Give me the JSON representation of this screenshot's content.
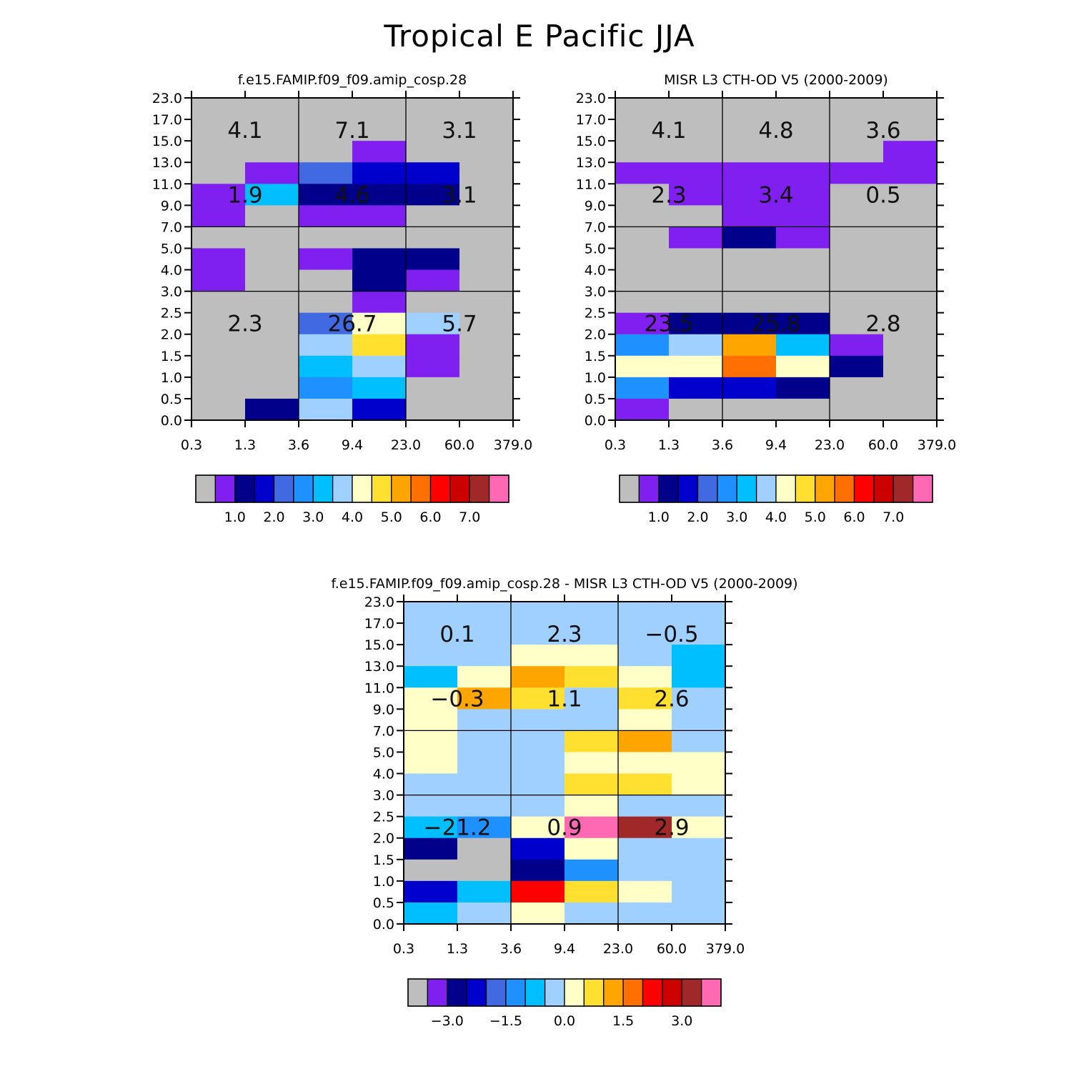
{
  "figure": {
    "title": "Tropical E Pacific JJA"
  },
  "chart_data": [
    {
      "type": "heatmap",
      "title": "f.e15.FAMIP.f09_f09.amip_cosp.28",
      "x_tick_labels": [
        "0.3",
        "1.3",
        "3.6",
        "9.4",
        "23.0",
        "60.0",
        "379.0"
      ],
      "y_tick_labels": [
        "0.0",
        "0.5",
        "1.0",
        "1.5",
        "2.0",
        "2.5",
        "3.0",
        "4.0",
        "5.0",
        "7.0",
        "9.0",
        "11.0",
        "13.0",
        "15.0",
        "17.0",
        "23.0"
      ],
      "x_dividers": [
        2,
        4
      ],
      "y_dividers": [
        6,
        9
      ],
      "grid_rows": [
        [
          0,
          0,
          0,
          0,
          0,
          0
        ],
        [
          0,
          0,
          0,
          0,
          0,
          0
        ],
        [
          0,
          0,
          0,
          1,
          0,
          0
        ],
        [
          0,
          1,
          4,
          3,
          3,
          0
        ],
        [
          1,
          6,
          2,
          2,
          2,
          0
        ],
        [
          1,
          0,
          1,
          1,
          0,
          0
        ],
        [
          0,
          0,
          0,
          0,
          0,
          0
        ],
        [
          1,
          0,
          1,
          2,
          2,
          0
        ],
        [
          1,
          0,
          0,
          2,
          1,
          0
        ],
        [
          0,
          0,
          0,
          1,
          0,
          0
        ],
        [
          0,
          0,
          4,
          8,
          7,
          0
        ],
        [
          0,
          0,
          7,
          9,
          1,
          0
        ],
        [
          0,
          0,
          6,
          7,
          1,
          0
        ],
        [
          0,
          0,
          5,
          6,
          0,
          0
        ],
        [
          0,
          2,
          7,
          3,
          0,
          0
        ]
      ],
      "region_labels": [
        {
          "row": 0,
          "col": 0,
          "text": "4.1"
        },
        {
          "row": 0,
          "col": 1,
          "text": "7.1"
        },
        {
          "row": 0,
          "col": 2,
          "text": "3.1"
        },
        {
          "row": 1,
          "col": 0,
          "text": "1.9"
        },
        {
          "row": 1,
          "col": 1,
          "text": "4.6"
        },
        {
          "row": 1,
          "col": 2,
          "text": "3.1"
        },
        {
          "row": 2,
          "col": 0,
          "text": "2.3"
        },
        {
          "row": 2,
          "col": 1,
          "text": "26.7"
        },
        {
          "row": 2,
          "col": 2,
          "text": "5.7"
        }
      ],
      "colorbar": {
        "colors": [
          "#bebebe",
          "#8020f0",
          "#00008b",
          "#0000cd",
          "#4169e1",
          "#1e90ff",
          "#00bfff",
          "#a0d0ff",
          "#ffffc8",
          "#ffe030",
          "#ffa500",
          "#ff7000",
          "#ff0000",
          "#cd0000",
          "#a02828",
          "#ff69b4"
        ],
        "tick_labels": [
          "1.0",
          "2.0",
          "3.0",
          "4.0",
          "5.0",
          "6.0",
          "7.0"
        ],
        "tick_boundaries": [
          2,
          4,
          6,
          8,
          10,
          12,
          14
        ]
      }
    },
    {
      "type": "heatmap",
      "title": "MISR L3 CTH-OD V5 (2000-2009)",
      "x_tick_labels": [
        "0.3",
        "1.3",
        "3.6",
        "9.4",
        "23.0",
        "60.0",
        "379.0"
      ],
      "y_tick_labels": [
        "0.0",
        "0.5",
        "1.0",
        "1.5",
        "2.0",
        "2.5",
        "3.0",
        "4.0",
        "5.0",
        "7.0",
        "9.0",
        "11.0",
        "13.0",
        "15.0",
        "17.0",
        "23.0"
      ],
      "x_dividers": [
        2,
        4
      ],
      "y_dividers": [
        6,
        9
      ],
      "grid_rows": [
        [
          0,
          0,
          0,
          0,
          0,
          0
        ],
        [
          0,
          0,
          0,
          0,
          0,
          0
        ],
        [
          0,
          0,
          0,
          0,
          0,
          1
        ],
        [
          1,
          1,
          1,
          1,
          1,
          1
        ],
        [
          0,
          1,
          1,
          1,
          0,
          0
        ],
        [
          0,
          0,
          1,
          1,
          0,
          0
        ],
        [
          0,
          1,
          2,
          1,
          0,
          0
        ],
        [
          0,
          0,
          0,
          0,
          0,
          0
        ],
        [
          0,
          0,
          0,
          0,
          0,
          0
        ],
        [
          0,
          0,
          0,
          0,
          0,
          0
        ],
        [
          1,
          2,
          2,
          2,
          0,
          0
        ],
        [
          5,
          7,
          10,
          6,
          1,
          0
        ],
        [
          8,
          8,
          11,
          8,
          2,
          0
        ],
        [
          5,
          3,
          3,
          2,
          0,
          0
        ],
        [
          1,
          0,
          0,
          0,
          0,
          0
        ]
      ],
      "region_labels": [
        {
          "row": 0,
          "col": 0,
          "text": "4.1"
        },
        {
          "row": 0,
          "col": 1,
          "text": "4.8"
        },
        {
          "row": 0,
          "col": 2,
          "text": "3.6"
        },
        {
          "row": 1,
          "col": 0,
          "text": "2.3"
        },
        {
          "row": 1,
          "col": 1,
          "text": "3.4"
        },
        {
          "row": 1,
          "col": 2,
          "text": "0.5"
        },
        {
          "row": 2,
          "col": 0,
          "text": "23.5"
        },
        {
          "row": 2,
          "col": 1,
          "text": "25.8"
        },
        {
          "row": 2,
          "col": 2,
          "text": "2.8"
        }
      ],
      "colorbar": {
        "colors": [
          "#bebebe",
          "#8020f0",
          "#00008b",
          "#0000cd",
          "#4169e1",
          "#1e90ff",
          "#00bfff",
          "#a0d0ff",
          "#ffffc8",
          "#ffe030",
          "#ffa500",
          "#ff7000",
          "#ff0000",
          "#cd0000",
          "#a02828",
          "#ff69b4"
        ],
        "tick_labels": [
          "1.0",
          "2.0",
          "3.0",
          "4.0",
          "5.0",
          "6.0",
          "7.0"
        ],
        "tick_boundaries": [
          2,
          4,
          6,
          8,
          10,
          12,
          14
        ]
      }
    },
    {
      "type": "heatmap",
      "title": "f.e15.FAMIP.f09_f09.amip_cosp.28 - MISR L3 CTH-OD V5 (2000-2009)",
      "x_tick_labels": [
        "0.3",
        "1.3",
        "3.6",
        "9.4",
        "23.0",
        "60.0",
        "379.0"
      ],
      "y_tick_labels": [
        "0.0",
        "0.5",
        "1.0",
        "1.5",
        "2.0",
        "2.5",
        "3.0",
        "4.0",
        "5.0",
        "7.0",
        "9.0",
        "11.0",
        "13.0",
        "15.0",
        "17.0",
        "23.0"
      ],
      "x_dividers": [
        2,
        4
      ],
      "y_dividers": [
        6,
        9
      ],
      "grid_rows": [
        [
          7,
          7,
          7,
          7,
          7,
          7
        ],
        [
          7,
          7,
          7,
          7,
          7,
          7
        ],
        [
          7,
          7,
          8,
          8,
          7,
          6
        ],
        [
          6,
          8,
          10,
          9,
          8,
          6
        ],
        [
          8,
          10,
          9,
          7,
          9,
          7
        ],
        [
          8,
          7,
          7,
          7,
          8,
          7
        ],
        [
          8,
          7,
          7,
          9,
          10,
          7
        ],
        [
          8,
          7,
          7,
          8,
          8,
          8
        ],
        [
          7,
          7,
          7,
          9,
          9,
          8
        ],
        [
          7,
          7,
          7,
          8,
          7,
          7
        ],
        [
          6,
          5,
          8,
          15,
          14,
          8
        ],
        [
          2,
          0,
          3,
          8,
          7,
          7
        ],
        [
          0,
          0,
          2,
          5,
          7,
          7
        ],
        [
          3,
          6,
          12,
          9,
          8,
          7
        ],
        [
          6,
          7,
          8,
          7,
          7,
          7
        ]
      ],
      "region_labels": [
        {
          "row": 0,
          "col": 0,
          "text": "0.1"
        },
        {
          "row": 0,
          "col": 1,
          "text": "2.3"
        },
        {
          "row": 0,
          "col": 2,
          "text": "−0.5"
        },
        {
          "row": 1,
          "col": 0,
          "text": "−0.3"
        },
        {
          "row": 1,
          "col": 1,
          "text": "1.1"
        },
        {
          "row": 1,
          "col": 2,
          "text": "2.6"
        },
        {
          "row": 2,
          "col": 0,
          "text": "−21.2"
        },
        {
          "row": 2,
          "col": 1,
          "text": "0.9"
        },
        {
          "row": 2,
          "col": 2,
          "text": "2.9"
        }
      ],
      "colorbar": {
        "colors": [
          "#bebebe",
          "#8020f0",
          "#00008b",
          "#0000cd",
          "#4169e1",
          "#1e90ff",
          "#00bfff",
          "#a0d0ff",
          "#ffffc8",
          "#ffe030",
          "#ffa500",
          "#ff7000",
          "#ff0000",
          "#cd0000",
          "#a02828",
          "#ff69b4"
        ],
        "tick_labels": [
          "−3.0",
          "−1.5",
          "0.0",
          "1.5",
          "3.0"
        ],
        "tick_boundaries": [
          2,
          5,
          8,
          11,
          14
        ]
      }
    }
  ]
}
